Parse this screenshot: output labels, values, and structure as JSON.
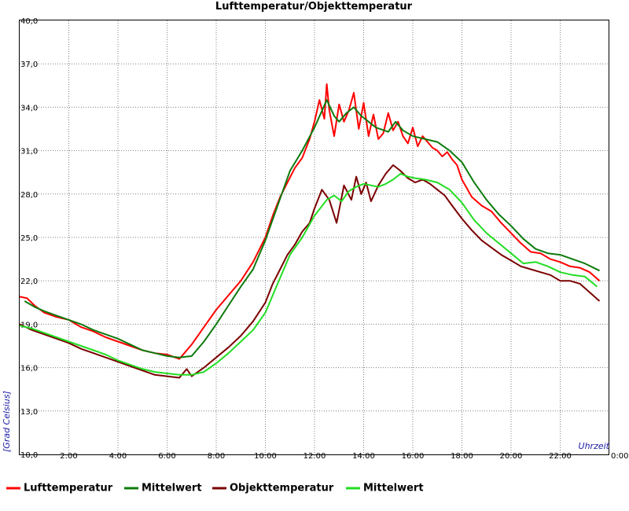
{
  "chart_data": {
    "type": "line",
    "title": "Lufttemperatur/Objekttemperatur",
    "ylabel": "[Grad Celsius]",
    "xlabel": "Uhrzeit",
    "ylim": [
      10,
      40
    ],
    "xlim": [
      0,
      24
    ],
    "grid": true,
    "legend_position": "bottom",
    "y_ticks": [
      {
        "value": 10,
        "label": "10,0"
      },
      {
        "value": 13,
        "label": "13,0"
      },
      {
        "value": 16,
        "label": "16,0"
      },
      {
        "value": 19,
        "label": "19,0"
      },
      {
        "value": 22,
        "label": "22,0"
      },
      {
        "value": 25,
        "label": "25,0"
      },
      {
        "value": 28,
        "label": "28,0"
      },
      {
        "value": 31,
        "label": "31,0"
      },
      {
        "value": 34,
        "label": "34,0"
      },
      {
        "value": 37,
        "label": "37,0"
      },
      {
        "value": 40,
        "label": "40,0"
      }
    ],
    "x_ticks": [
      {
        "value": 2,
        "label": "2:00"
      },
      {
        "value": 4,
        "label": "4:00"
      },
      {
        "value": 6,
        "label": "6:00"
      },
      {
        "value": 8,
        "label": "8:00"
      },
      {
        "value": 10,
        "label": "10:00"
      },
      {
        "value": 12,
        "label": "12:00"
      },
      {
        "value": 14,
        "label": "14:00"
      },
      {
        "value": 16,
        "label": "16:00"
      },
      {
        "value": 18,
        "label": "18:00"
      },
      {
        "value": 20,
        "label": "20:00"
      },
      {
        "value": 22,
        "label": "22:00"
      },
      {
        "value": 24,
        "label": "0:00"
      }
    ],
    "series": [
      {
        "name": "Lufttemperatur",
        "color": "#ff0000",
        "x": [
          0,
          0.3,
          0.6,
          1,
          1.5,
          2,
          2.5,
          3,
          3.5,
          4,
          4.5,
          5,
          5.5,
          6,
          6.5,
          7,
          7.5,
          8,
          8.5,
          9,
          9.5,
          10,
          10.3,
          10.6,
          10.9,
          11.2,
          11.5,
          11.8,
          12,
          12.2,
          12.4,
          12.5,
          12.6,
          12.8,
          13.0,
          13.2,
          13.4,
          13.6,
          13.8,
          14.0,
          14.2,
          14.4,
          14.6,
          14.8,
          15.0,
          15.2,
          15.4,
          15.6,
          15.8,
          16.0,
          16.2,
          16.4,
          16.6,
          16.8,
          17.0,
          17.2,
          17.4,
          17.6,
          17.8,
          18.0,
          18.4,
          18.8,
          19.2,
          19.6,
          20.0,
          20.4,
          20.8,
          21.2,
          21.6,
          22.0,
          22.4,
          22.8,
          23.2,
          23.6
        ],
        "y": [
          20.9,
          20.8,
          20.3,
          19.8,
          19.5,
          19.3,
          18.8,
          18.5,
          18.1,
          17.8,
          17.5,
          17.2,
          17.0,
          16.9,
          16.6,
          17.6,
          18.8,
          20.0,
          21.0,
          22.0,
          23.3,
          25.0,
          26.5,
          27.8,
          28.8,
          29.8,
          30.5,
          31.8,
          33.0,
          34.5,
          33.2,
          35.6,
          33.8,
          32.0,
          34.2,
          33.0,
          33.8,
          35.0,
          32.5,
          34.3,
          32.0,
          33.5,
          31.8,
          32.2,
          33.6,
          32.4,
          33.0,
          32.0,
          31.5,
          32.6,
          31.3,
          32.0,
          31.6,
          31.2,
          31.0,
          30.6,
          30.9,
          30.4,
          30.0,
          29.0,
          27.8,
          27.2,
          26.8,
          26.0,
          25.3,
          24.6,
          24.0,
          23.9,
          23.5,
          23.3,
          23.0,
          22.9,
          22.6,
          22.0
        ]
      },
      {
        "name": "Mittelwert",
        "color": "#0d7a0d",
        "x": [
          0.2,
          0.6,
          1,
          1.5,
          2,
          2.5,
          3,
          3.5,
          4,
          4.5,
          5,
          5.5,
          6,
          6.5,
          7,
          7.5,
          8,
          8.5,
          9,
          9.5,
          10,
          10.5,
          11,
          11.5,
          12,
          12.5,
          12.8,
          13.0,
          13.3,
          13.6,
          13.9,
          14.2,
          14.5,
          15.0,
          15.3,
          15.6,
          16.0,
          16.5,
          17.0,
          17.5,
          18.0,
          18.5,
          19.0,
          19.5,
          20.0,
          20.5,
          21.0,
          21.5,
          22.0,
          22.5,
          23.0,
          23.6
        ],
        "y": [
          20.6,
          20.2,
          19.9,
          19.6,
          19.3,
          19.0,
          18.6,
          18.3,
          18.0,
          17.6,
          17.2,
          17.0,
          16.8,
          16.7,
          16.8,
          17.8,
          19.0,
          20.3,
          21.6,
          22.8,
          24.8,
          27.2,
          29.6,
          31.0,
          32.6,
          34.5,
          33.4,
          33.0,
          33.6,
          34.0,
          33.4,
          33.0,
          32.6,
          32.3,
          33.0,
          32.4,
          32.0,
          31.8,
          31.6,
          31.0,
          30.2,
          28.8,
          27.6,
          26.6,
          25.8,
          24.9,
          24.2,
          23.9,
          23.8,
          23.5,
          23.2,
          22.7
        ]
      },
      {
        "name": "Objekttemperatur",
        "color": "#7a0000",
        "x": [
          0,
          0.5,
          1,
          1.5,
          2,
          2.5,
          3,
          3.5,
          4,
          4.5,
          5,
          5.5,
          6,
          6.5,
          6.8,
          7,
          7.5,
          8,
          8.5,
          9,
          9.5,
          10,
          10.3,
          10.6,
          10.9,
          11.2,
          11.5,
          11.8,
          12,
          12.3,
          12.6,
          12.9,
          13.2,
          13.5,
          13.7,
          13.9,
          14.1,
          14.3,
          14.6,
          14.9,
          15.2,
          15.5,
          15.8,
          16.1,
          16.4,
          16.7,
          17.0,
          17.3,
          17.6,
          18.0,
          18.4,
          18.8,
          19.2,
          19.6,
          20.0,
          20.4,
          20.8,
          21.2,
          21.6,
          22.0,
          22.4,
          22.8,
          23.2,
          23.6
        ],
        "y": [
          19.0,
          18.6,
          18.3,
          18.0,
          17.7,
          17.3,
          17.0,
          16.7,
          16.4,
          16.1,
          15.8,
          15.5,
          15.4,
          15.3,
          15.9,
          15.4,
          16.0,
          16.7,
          17.4,
          18.2,
          19.2,
          20.5,
          21.8,
          22.8,
          23.8,
          24.5,
          25.4,
          26.0,
          27.0,
          28.3,
          27.6,
          26.0,
          28.6,
          27.6,
          29.2,
          28.0,
          28.8,
          27.5,
          28.6,
          29.4,
          30.0,
          29.6,
          29.1,
          28.8,
          29.0,
          28.7,
          28.3,
          27.9,
          27.2,
          26.3,
          25.5,
          24.8,
          24.3,
          23.8,
          23.4,
          23.0,
          22.8,
          22.6,
          22.4,
          22.0,
          22.0,
          21.8,
          21.2,
          20.6
        ]
      },
      {
        "name": "Mittelwert",
        "color": "#22dd22",
        "x": [
          0,
          0.5,
          1,
          1.5,
          2,
          2.5,
          3,
          3.5,
          4,
          4.5,
          5,
          5.5,
          6,
          6.5,
          7,
          7.5,
          8,
          8.5,
          9,
          9.5,
          10,
          10.5,
          11,
          11.5,
          12,
          12.5,
          12.8,
          13.1,
          13.4,
          13.7,
          14.0,
          14.3,
          14.6,
          14.9,
          15.2,
          15.5,
          15.8,
          16.1,
          16.5,
          17.0,
          17.5,
          18.0,
          18.5,
          19.0,
          19.5,
          20.0,
          20.5,
          21.0,
          21.5,
          22.0,
          22.5,
          23.0,
          23.5
        ],
        "y": [
          18.9,
          18.7,
          18.4,
          18.1,
          17.8,
          17.5,
          17.2,
          16.9,
          16.5,
          16.2,
          15.9,
          15.7,
          15.6,
          15.5,
          15.5,
          15.7,
          16.3,
          17.0,
          17.8,
          18.6,
          19.8,
          21.8,
          23.8,
          25.0,
          26.5,
          27.6,
          27.9,
          27.5,
          28.2,
          28.5,
          28.7,
          28.6,
          28.5,
          28.7,
          29.0,
          29.4,
          29.2,
          29.1,
          29.0,
          28.8,
          28.3,
          27.4,
          26.2,
          25.3,
          24.6,
          23.9,
          23.2,
          23.3,
          23.0,
          22.6,
          22.4,
          22.3,
          21.6
        ]
      }
    ]
  }
}
